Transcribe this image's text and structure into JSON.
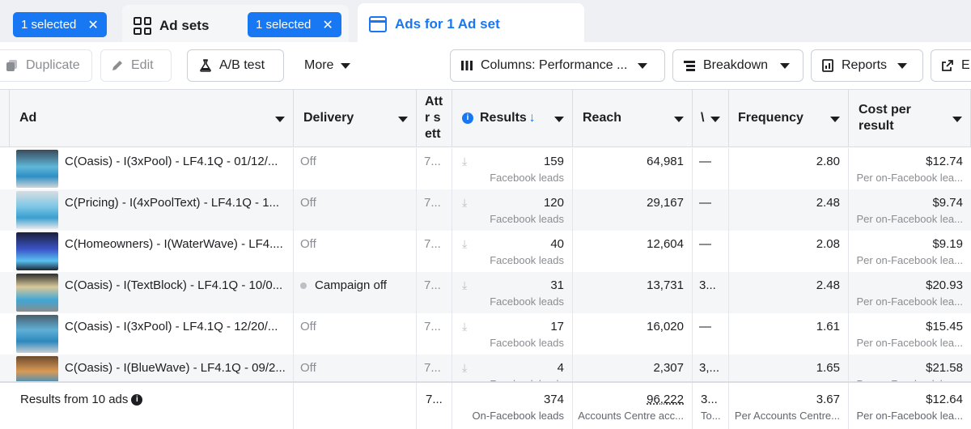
{
  "tabs": {
    "chip1": "1 selected",
    "adsets_label": "Ad sets",
    "chip2": "1 selected",
    "ads_label": "Ads for 1 Ad set"
  },
  "toolbar": {
    "duplicate": "Duplicate",
    "edit": "Edit",
    "ab_test": "A/B test",
    "more": "More",
    "columns": "Columns: Performance ...",
    "breakdown": "Breakdown",
    "reports": "Reports",
    "export": "E"
  },
  "headers": {
    "ad": "Ad",
    "delivery": "Delivery",
    "attribution": "Attr sett",
    "results": "Results",
    "reach": "Reach",
    "v": "\\",
    "frequency": "Frequency",
    "cost_per_result": "Cost per result"
  },
  "rows": [
    {
      "name": "C(Oasis) - I(3xPool) - LF4.1Q - 01/12/...",
      "delivery": "Off",
      "attr": "7...",
      "results": "159",
      "results_sub": "Facebook leads",
      "reach": "64,981",
      "v": "—",
      "frequency": "2.80",
      "cost": "$12.74",
      "cost_sub": "Per on-Facebook lea..."
    },
    {
      "name": "C(Pricing) - I(4xPoolText) - LF4.1Q - 1...",
      "delivery": "Off",
      "attr": "7...",
      "results": "120",
      "results_sub": "Facebook leads",
      "reach": "29,167",
      "v": "—",
      "frequency": "2.48",
      "cost": "$9.74",
      "cost_sub": "Per on-Facebook lea..."
    },
    {
      "name": "C(Homeowners) - I(WaterWave) - LF4....",
      "delivery": "Off",
      "attr": "7...",
      "results": "40",
      "results_sub": "Facebook leads",
      "reach": "12,604",
      "v": "—",
      "frequency": "2.08",
      "cost": "$9.19",
      "cost_sub": "Per on-Facebook lea..."
    },
    {
      "name": "C(Oasis) - I(TextBlock) - LF4.1Q - 10/0...",
      "delivery": "Campaign off",
      "attr": "7...",
      "results": "31",
      "results_sub": "Facebook leads",
      "reach": "13,731",
      "v": "3...",
      "frequency": "2.48",
      "cost": "$20.93",
      "cost_sub": "Per on-Facebook lea..."
    },
    {
      "name": "C(Oasis) - I(3xPool) - LF4.1Q - 12/20/...",
      "delivery": "Off",
      "attr": "7...",
      "results": "17",
      "results_sub": "Facebook leads",
      "reach": "16,020",
      "v": "—",
      "frequency": "1.61",
      "cost": "$15.45",
      "cost_sub": "Per on-Facebook lea..."
    },
    {
      "name": "C(Oasis) - I(BlueWave) - LF4.1Q - 09/2...",
      "delivery": "Off",
      "attr": "7...",
      "results": "4",
      "results_sub": "Facebook leads",
      "reach": "2,307",
      "v": "3,...",
      "frequency": "1.65",
      "cost": "$21.58",
      "cost_sub": "Per on-Facebook lea..."
    }
  ],
  "footer": {
    "label": "Results from 10 ads",
    "attr": "7...",
    "results": "374",
    "results_sub": "On-Facebook leads",
    "reach": "96,222",
    "reach_sub": "Accounts Centre acc...",
    "v": "3...",
    "v_sub": "To...",
    "frequency": "3.67",
    "frequency_sub": "Per Accounts Centre...",
    "cost": "$12.64",
    "cost_sub": "Per on-Facebook lea..."
  },
  "colors": {
    "accent": "#1877f2"
  }
}
